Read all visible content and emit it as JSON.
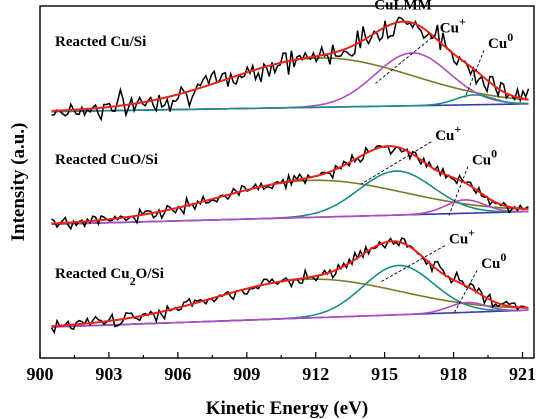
{
  "chart_data": {
    "type": "line",
    "xlabel": "Kinetic Energy (eV)",
    "ylabel": "Intensity (a.u.)",
    "xlim": [
      900,
      921.5
    ],
    "x_ticks": [
      900,
      903,
      906,
      909,
      912,
      915,
      918,
      921
    ],
    "x_tick_labels": [
      "900",
      "903",
      "906",
      "909",
      "912",
      "915",
      "918",
      "921"
    ],
    "ylim": [
      0,
      100
    ],
    "y_ticks_labeled": false,
    "grid": false,
    "colors": {
      "raw": "#000000",
      "envelope": "#e8231c",
      "broad": "#7a7a28",
      "cu_plus_top": "#b24bc0",
      "cu_plus": "#1a8c8c",
      "cu_zero_top": "#1a8c8c",
      "cu_zero": "#b24bc0",
      "baseline": "#3a3aa8"
    },
    "panels": [
      {
        "label": "Reacted Cu/Si",
        "label_parts": [
          {
            "t": "Reacted Cu/Si",
            "sub": false
          }
        ],
        "baseline": {
          "start": 70.0,
          "end": 72.2
        },
        "components": [
          {
            "key": "broad",
            "center": 912.2,
            "height": 14.0,
            "fwhm": 9.5,
            "color_key": "broad"
          },
          {
            "key": "cu_plus",
            "center": 916.2,
            "height": 15.0,
            "fwhm": 3.8,
            "color_key": "cu_plus_top"
          },
          {
            "key": "cu_zero",
            "center": 918.9,
            "height": 2.8,
            "fwhm": 1.9,
            "color_key": "cu_zero_top"
          }
        ],
        "noise_amp": 1.8,
        "seed": 7,
        "annotations": [
          {
            "text": "CuLMM",
            "sup": "",
            "x": 915.8,
            "y": 99.0,
            "lx": null,
            "ly": null
          },
          {
            "text": "Cu",
            "sup": "+",
            "x": 917.4,
            "y": 92.5,
            "lx": 914.6,
            "ly": 78.0
          },
          {
            "text": "Cu",
            "sup": "0",
            "x": 919.5,
            "y": 88.0,
            "lx": 918.5,
            "ly": 74.0
          }
        ]
      },
      {
        "label": "Reacted CuO/Si",
        "label_parts": [
          {
            "t": "Reacted CuO/Si",
            "sub": false
          }
        ],
        "baseline": {
          "start": 38.0,
          "end": 41.6
        },
        "components": [
          {
            "key": "broad",
            "center": 911.8,
            "height": 10.5,
            "fwhm": 9.5,
            "color_key": "broad"
          },
          {
            "key": "cu_plus",
            "center": 915.5,
            "height": 12.5,
            "fwhm": 3.8,
            "color_key": "cu_plus"
          },
          {
            "key": "cu_zero",
            "center": 918.5,
            "height": 3.8,
            "fwhm": 2.0,
            "color_key": "cu_zero"
          }
        ],
        "noise_amp": 0.9,
        "seed": 19,
        "annotations": [
          {
            "text": "Cu",
            "sup": "+",
            "x": 917.2,
            "y": 62.0,
            "lx": 914.0,
            "ly": 49.5
          },
          {
            "text": "Cu",
            "sup": "0",
            "x": 918.8,
            "y": 55.0,
            "lx": 917.8,
            "ly": 40.5
          }
        ]
      },
      {
        "label": "Reacted Cu2O/Si",
        "label_parts": [
          {
            "t": "Reacted Cu",
            "sub": false
          },
          {
            "t": "2",
            "sub": true
          },
          {
            "t": "O/Si",
            "sub": false
          }
        ],
        "baseline": {
          "start": 8.8,
          "end": 13.6
        },
        "components": [
          {
            "key": "broad",
            "center": 911.6,
            "height": 11.0,
            "fwhm": 9.5,
            "color_key": "broad"
          },
          {
            "key": "cu_plus",
            "center": 915.6,
            "height": 14.0,
            "fwhm": 3.6,
            "color_key": "cu_plus"
          },
          {
            "key": "cu_zero",
            "center": 918.6,
            "height": 2.8,
            "fwhm": 1.9,
            "color_key": "cu_zero"
          }
        ],
        "noise_amp": 1.0,
        "seed": 31,
        "annotations": [
          {
            "text": "Cu",
            "sup": "+",
            "x": 917.8,
            "y": 32.5,
            "lx": 914.8,
            "ly": 21.5
          },
          {
            "text": "Cu",
            "sup": "0",
            "x": 919.2,
            "y": 25.5,
            "lx": 918.0,
            "ly": 12.5
          }
        ]
      }
    ]
  }
}
